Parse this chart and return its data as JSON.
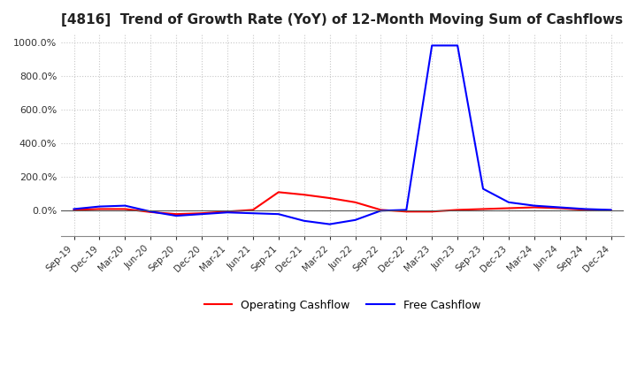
{
  "title": "[4816]  Trend of Growth Rate (YoY) of 12-Month Moving Sum of Cashflows",
  "title_fontsize": 11,
  "background_color": "#ffffff",
  "grid_color": "#c8c8c8",
  "ylim": [
    -150,
    1050
  ],
  "yticks": [
    0,
    200,
    400,
    600,
    800,
    1000
  ],
  "xlabel": "",
  "ylabel": "",
  "legend_entries": [
    "Operating Cashflow",
    "Free Cashflow"
  ],
  "legend_colors": [
    "#ff0000",
    "#0000ff"
  ],
  "x_labels": [
    "Sep-19",
    "Dec-19",
    "Mar-20",
    "Jun-20",
    "Sep-20",
    "Dec-20",
    "Mar-21",
    "Jun-21",
    "Sep-21",
    "Dec-21",
    "Mar-22",
    "Jun-22",
    "Sep-22",
    "Dec-22",
    "Mar-23",
    "Jun-23",
    "Sep-23",
    "Dec-23",
    "Mar-24",
    "Jun-24",
    "Sep-24",
    "Dec-24"
  ],
  "operating_cashflow": [
    5,
    10,
    10,
    -8,
    -20,
    -15,
    -5,
    5,
    110,
    95,
    75,
    50,
    5,
    -5,
    -5,
    5,
    10,
    15,
    20,
    15,
    5,
    2
  ],
  "free_cashflow": [
    10,
    25,
    30,
    -5,
    -30,
    -20,
    -10,
    -15,
    -20,
    -60,
    -80,
    -55,
    0,
    5,
    980,
    980,
    130,
    50,
    30,
    20,
    10,
    5
  ]
}
